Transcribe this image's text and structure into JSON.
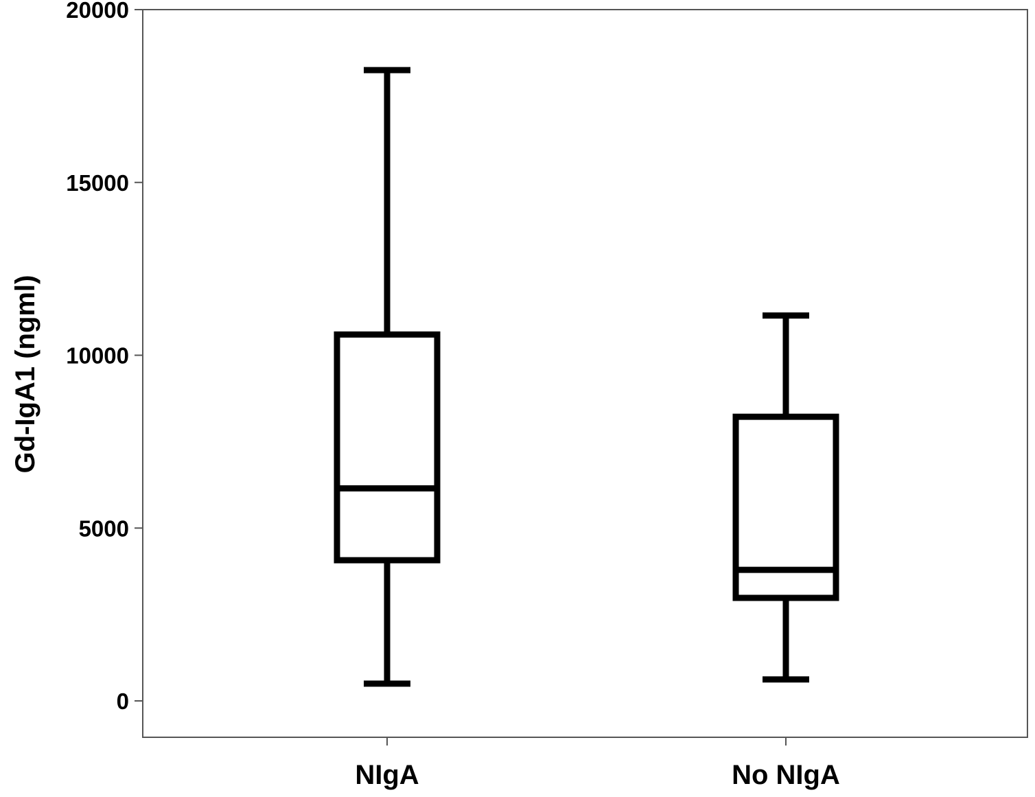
{
  "chart_data": {
    "type": "box",
    "title": "",
    "xlabel": "",
    "ylabel": "Gd-IgA1 (ngml)",
    "ylim": [
      -1000,
      20000
    ],
    "yticks": [
      0,
      5000,
      10000,
      15000,
      20000
    ],
    "ytick_labels": [
      "0",
      "5000",
      "10000",
      "15000",
      "20000"
    ],
    "grid": false,
    "categories": [
      "NIgA",
      "No NIgA"
    ],
    "boxes": [
      {
        "name": "NIgA",
        "whisker_low": 500,
        "q1": 4070,
        "median": 6150,
        "q3": 10600,
        "whisker_high": 18250
      },
      {
        "name": "No NIgA",
        "whisker_low": 620,
        "q1": 2980,
        "median": 3790,
        "q3": 8220,
        "whisker_high": 11150
      }
    ],
    "colors": {
      "stroke": "#000000",
      "frame": "#555555"
    }
  }
}
